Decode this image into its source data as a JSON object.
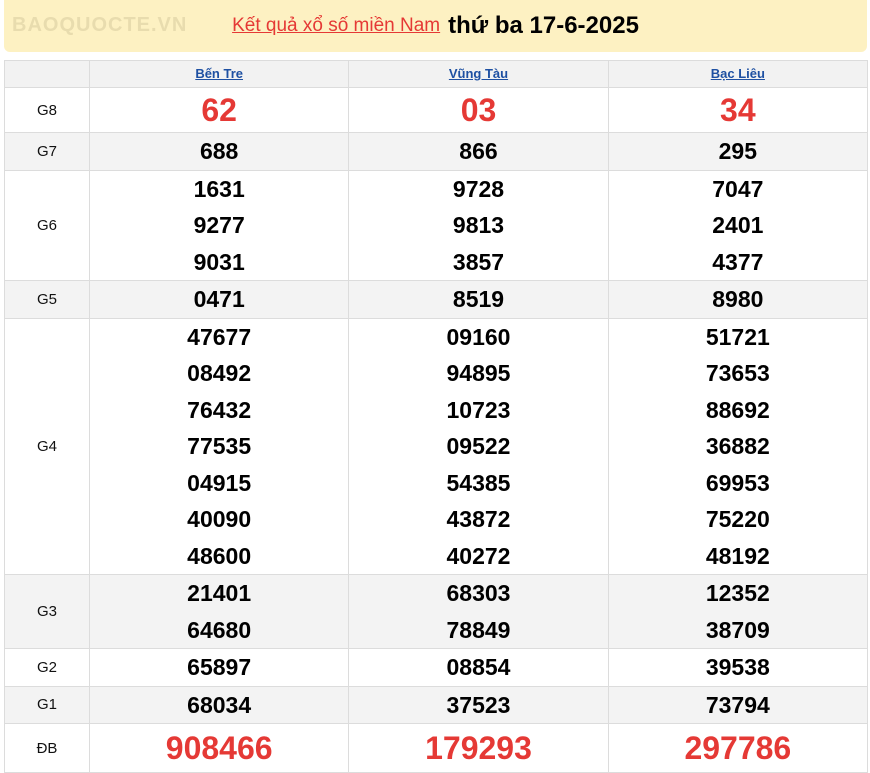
{
  "header": {
    "link": "Kết quả xổ số miền Nam",
    "date": "thứ ba 17-6-2025"
  },
  "provinces": [
    "Bến Tre",
    "Vũng Tàu",
    "Bạc Liêu"
  ],
  "rows": [
    {
      "label": "G8",
      "values": [
        [
          "62"
        ],
        [
          "03"
        ],
        [
          "34"
        ]
      ]
    },
    {
      "label": "G7",
      "values": [
        [
          "688"
        ],
        [
          "866"
        ],
        [
          "295"
        ]
      ]
    },
    {
      "label": "G6",
      "values": [
        [
          "1631",
          "9277",
          "9031"
        ],
        [
          "9728",
          "9813",
          "3857"
        ],
        [
          "7047",
          "2401",
          "4377"
        ]
      ]
    },
    {
      "label": "G5",
      "values": [
        [
          "0471"
        ],
        [
          "8519"
        ],
        [
          "8980"
        ]
      ]
    },
    {
      "label": "G4",
      "values": [
        [
          "47677",
          "08492",
          "76432",
          "77535",
          "04915",
          "40090",
          "48600"
        ],
        [
          "09160",
          "94895",
          "10723",
          "09522",
          "54385",
          "43872",
          "40272"
        ],
        [
          "51721",
          "73653",
          "88692",
          "36882",
          "69953",
          "75220",
          "48192"
        ]
      ]
    },
    {
      "label": "G3",
      "values": [
        [
          "21401",
          "64680"
        ],
        [
          "68303",
          "78849"
        ],
        [
          "12352",
          "38709"
        ]
      ]
    },
    {
      "label": "G2",
      "values": [
        [
          "65897"
        ],
        [
          "08854"
        ],
        [
          "39538"
        ]
      ]
    },
    {
      "label": "G1",
      "values": [
        [
          "68034"
        ],
        [
          "37523"
        ],
        [
          "73794"
        ]
      ]
    },
    {
      "label": "ĐB",
      "values": [
        [
          "908466"
        ],
        [
          "179293"
        ],
        [
          "297786"
        ]
      ]
    }
  ],
  "watermark": "BAOQUOCTE.VN",
  "colors": {
    "accent_red": "#e53935",
    "link_blue": "#1e50a2",
    "header_bg": "#fdf1c2"
  }
}
